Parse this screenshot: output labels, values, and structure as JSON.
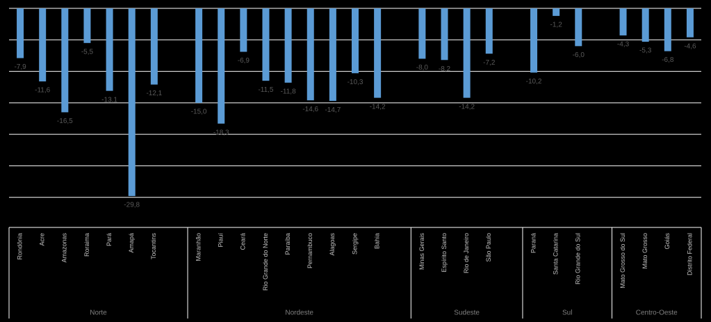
{
  "chart_data": {
    "type": "bar",
    "categories": [
      "Rondônia",
      "Acre",
      "Amazonas",
      "Roraima",
      "Pará",
      "Amapá",
      "Tocantins",
      null,
      "Maranhão",
      "Piauí",
      "Ceará",
      "Rio Grande do Norte",
      "Paraíba",
      "Pernambuco",
      "Alagoas",
      "Sergipe",
      "Bahia",
      null,
      "Minas Gerais",
      "Espírito Santo",
      "Rio de Janeiro",
      "São Paulo",
      null,
      "Paraná",
      "Santa Catarina",
      "Rio Grande do Sul",
      null,
      "Mato Grosso do Sul",
      "Mato Grosso",
      "Goiás",
      "Distrito Federal"
    ],
    "values": [
      -7.9,
      -11.6,
      -16.5,
      -5.5,
      -13.1,
      -29.8,
      -12.1,
      null,
      -15.0,
      -18.3,
      -6.9,
      -11.5,
      -11.8,
      -14.6,
      -14.7,
      -10.3,
      -14.2,
      null,
      -8.0,
      -8.2,
      -14.2,
      -7.2,
      null,
      -10.2,
      -1.2,
      -6.0,
      null,
      -4.3,
      -5.3,
      -6.8,
      -4.6
    ],
    "value_labels": [
      "-7,9",
      "-11,6",
      "-16,5",
      "-5,5",
      "-13,1",
      "-29,8",
      "-12,1",
      null,
      "-15,0",
      "-18,3",
      "-6,9",
      "-11,5",
      "-11,8",
      "-14,6",
      "-14,7",
      "-10,3",
      "-14,2",
      null,
      "-8,0",
      "-8,2",
      "-14,2",
      "-7,2",
      null,
      "-10,2",
      "-1,2",
      "-6,0",
      null,
      "-4,3",
      "-5,3",
      "-6,8",
      "-4,6"
    ],
    "groups": [
      "Norte",
      "Nordeste",
      "Sudeste",
      "Sul",
      "Centro-Oeste"
    ],
    "color": "#5b9bd5",
    "ylim": [
      -35,
      0
    ],
    "yticks": [
      0,
      -5,
      -10,
      -15,
      -20,
      -25,
      -30
    ],
    "grid": true
  }
}
